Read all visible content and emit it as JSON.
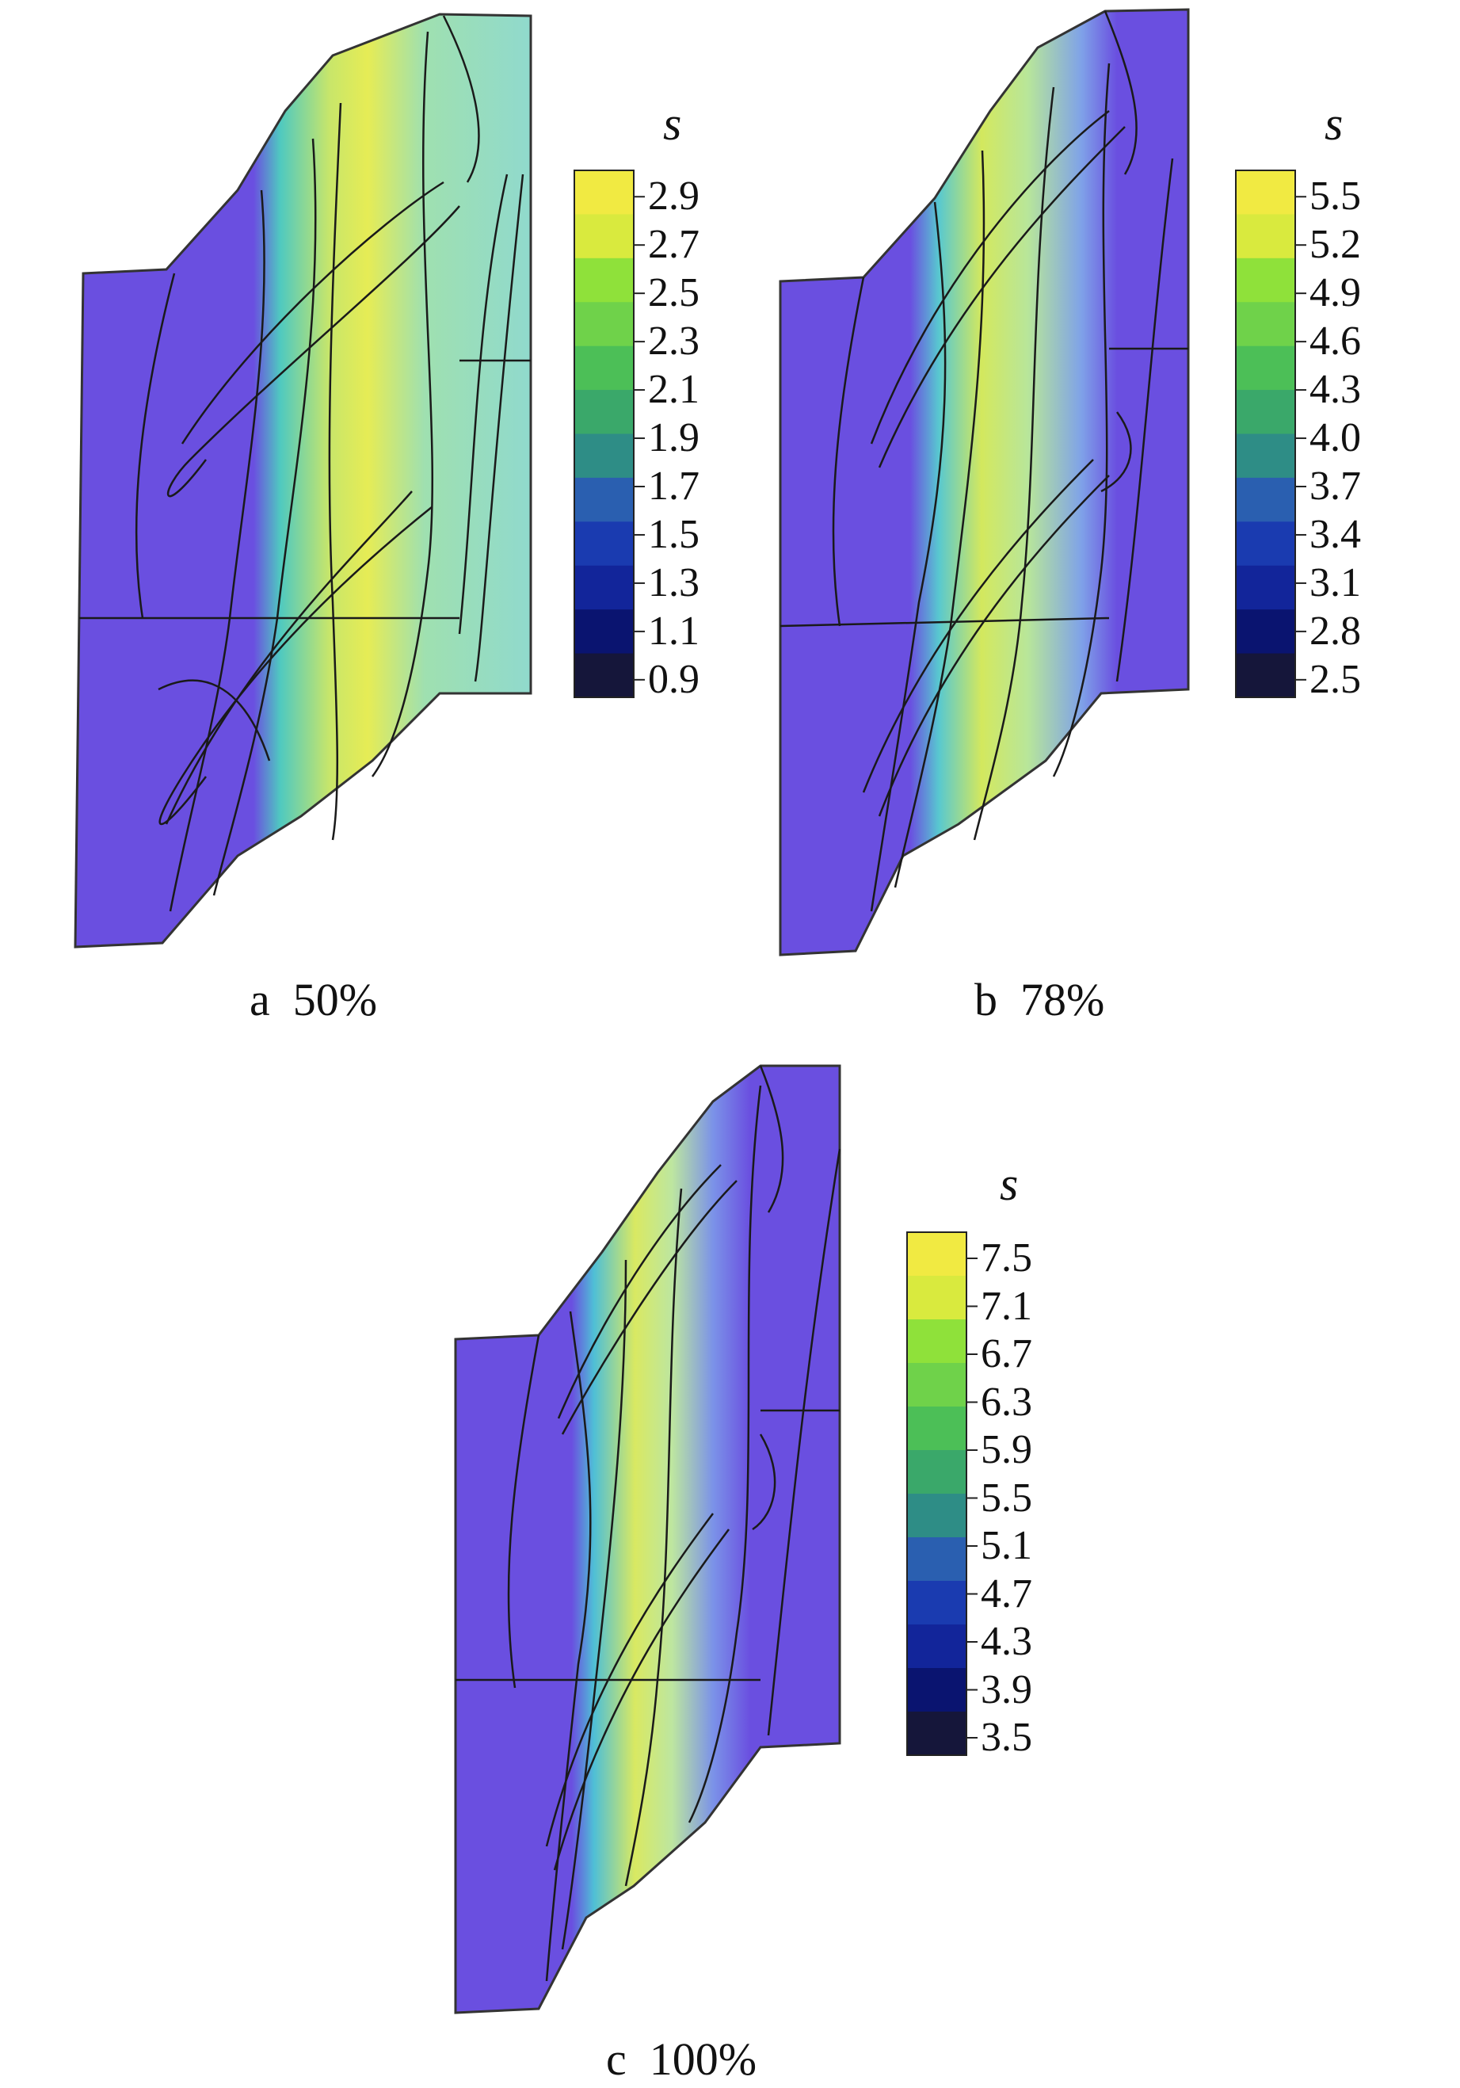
{
  "panels": [
    {
      "id": "a",
      "caption": "a  50%",
      "colorbar": {
        "title": "s",
        "levels": [
          "2.9",
          "2.7",
          "2.5",
          "2.3",
          "2.1",
          "1.9",
          "1.7",
          "1.5",
          "1.3",
          "1.1",
          "0.9"
        ]
      }
    },
    {
      "id": "b",
      "caption": "b  78%",
      "colorbar": {
        "title": "s",
        "levels": [
          "5.5",
          "5.2",
          "4.9",
          "4.6",
          "4.3",
          "4.0",
          "3.7",
          "3.4",
          "3.1",
          "2.8",
          "2.5"
        ]
      }
    },
    {
      "id": "c",
      "caption": "c  100%",
      "colorbar": {
        "title": "s",
        "levels": [
          "7.5",
          "7.1",
          "6.7",
          "6.3",
          "5.9",
          "5.5",
          "5.1",
          "4.7",
          "4.3",
          "3.9",
          "3.5"
        ]
      }
    }
  ],
  "colors": {
    "scale": [
      "#f1ea42",
      "#d9ea3e",
      "#8fe13a",
      "#6fd24a",
      "#4cbf57",
      "#3aa86a",
      "#2e8d86",
      "#2a5fb0",
      "#1a3bb0",
      "#12259a",
      "#0a1470",
      "#15163a"
    ],
    "background_low": "#6a4fe0",
    "contour_line": "#1a1a1a"
  }
}
